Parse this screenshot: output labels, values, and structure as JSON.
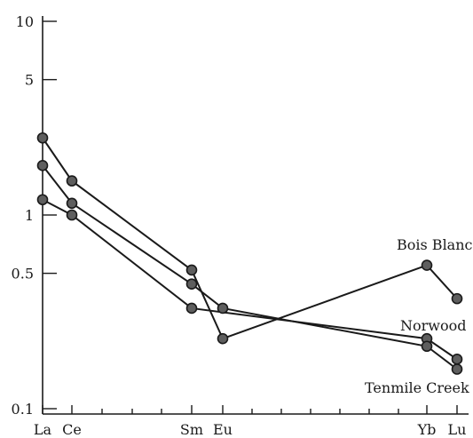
{
  "chart_data": {
    "type": "line",
    "y_scale": "log",
    "ylim": [
      0.1,
      10
    ],
    "y_ticks": [
      {
        "value": 10,
        "label": "10"
      },
      {
        "value": 5,
        "label": "5"
      },
      {
        "value": 1,
        "label": "1"
      },
      {
        "value": 0.5,
        "label": "0.5"
      },
      {
        "value": 0.1,
        "label": "0.1"
      }
    ],
    "x_label_ticks": [
      "La",
      "Ce",
      "Sm",
      "Eu",
      "Yb",
      "Lu"
    ],
    "x_minor_ticks": [
      "Pr",
      "Nd",
      "Pm",
      "Gd",
      "Tb",
      "Dy",
      "Ho",
      "Er",
      "Tm"
    ],
    "grid": false,
    "series": [
      {
        "name": "Bois Blanc",
        "points": [
          {
            "x": "La",
            "y": 2.5
          },
          {
            "x": "Ce",
            "y": 1.5
          },
          {
            "x": "Sm",
            "y": 0.52
          },
          {
            "x": "Eu",
            "y": 0.23
          },
          {
            "x": "Yb",
            "y": 0.55
          },
          {
            "x": "Lu",
            "y": 0.37
          }
        ]
      },
      {
        "name": "Norwood",
        "points": [
          {
            "x": "La",
            "y": 1.2
          },
          {
            "x": "Ce",
            "y": 1.0
          },
          {
            "x": "Sm",
            "y": 0.33
          },
          {
            "x": "Yb",
            "y": 0.23
          },
          {
            "x": "Lu",
            "y": 0.18
          }
        ]
      },
      {
        "name": "Tenmile Creek",
        "points": [
          {
            "x": "La",
            "y": 1.8
          },
          {
            "x": "Ce",
            "y": 1.15
          },
          {
            "x": "Sm",
            "y": 0.44
          },
          {
            "x": "Eu",
            "y": 0.33
          },
          {
            "x": "Yb",
            "y": 0.21
          },
          {
            "x": "Lu",
            "y": 0.16
          }
        ]
      }
    ]
  }
}
